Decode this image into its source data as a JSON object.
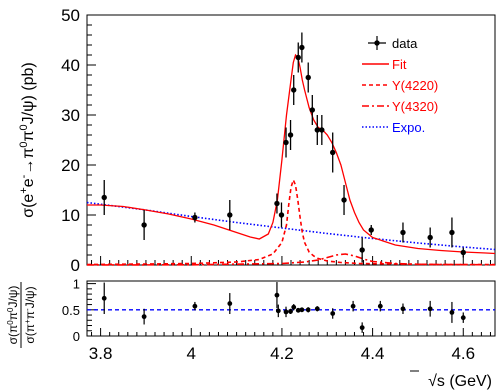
{
  "chart_data": [
    {
      "type": "scatter",
      "panel": "main",
      "xlabel": "√s (GeV)",
      "ylabel_parts": [
        "σ(e",
        "+",
        "e",
        "-",
        "→π",
        "0",
        "π",
        "0",
        "J/ψ) (pb)"
      ],
      "xlim": [
        3.77,
        4.67
      ],
      "ylim": [
        0,
        50
      ],
      "x_ticks": [
        3.8,
        4,
        4.2,
        4.4,
        4.6
      ],
      "x_tick_labels": [
        "3.8",
        "4",
        "4.2",
        "4.4",
        "4.6"
      ],
      "y_ticks": [
        0,
        10,
        20,
        30,
        40,
        50
      ],
      "y_tick_labels": [
        "0",
        "10",
        "20",
        "30",
        "40",
        "50"
      ],
      "grid": false,
      "legend_position": "top-right",
      "legend": [
        {
          "key": "data",
          "label": "data",
          "color": "#000000",
          "style": "marker"
        },
        {
          "key": "fit",
          "label": "Fit",
          "color": "#ff0000",
          "style": "solid"
        },
        {
          "key": "y4220",
          "label": "Y(4220)",
          "color": "#ff0000",
          "style": "dashed"
        },
        {
          "key": "y4320",
          "label": "Y(4320)",
          "color": "#ff0000",
          "style": "dashdot"
        },
        {
          "key": "expo",
          "label": "Expo.",
          "color": "#0000ff",
          "style": "dotted"
        }
      ],
      "data_points": [
        {
          "x": 3.808,
          "y": 13.5,
          "err": 3.5
        },
        {
          "x": 3.896,
          "y": 8.0,
          "err": 3.0
        },
        {
          "x": 4.008,
          "y": 9.5,
          "err": 1.0
        },
        {
          "x": 4.085,
          "y": 10.0,
          "err": 3.0
        },
        {
          "x": 4.189,
          "y": 12.3,
          "err": 2.0
        },
        {
          "x": 4.199,
          "y": 10.0,
          "err": 2.5
        },
        {
          "x": 4.209,
          "y": 24.5,
          "err": 3.0
        },
        {
          "x": 4.219,
          "y": 26.0,
          "err": 3.0
        },
        {
          "x": 4.226,
          "y": 35.0,
          "err": 3.0
        },
        {
          "x": 4.236,
          "y": 41.5,
          "err": 3.0
        },
        {
          "x": 4.244,
          "y": 43.5,
          "err": 3.0
        },
        {
          "x": 4.258,
          "y": 37.5,
          "err": 3.0
        },
        {
          "x": 4.267,
          "y": 31.0,
          "err": 3.0
        },
        {
          "x": 4.278,
          "y": 27.0,
          "err": 3.0
        },
        {
          "x": 4.288,
          "y": 27.0,
          "err": 3.0
        },
        {
          "x": 4.312,
          "y": 22.5,
          "err": 4.0
        },
        {
          "x": 4.337,
          "y": 13.0,
          "err": 3.0
        },
        {
          "x": 4.377,
          "y": 3.0,
          "err": 2.5
        },
        {
          "x": 4.397,
          "y": 7.0,
          "err": 1.0
        },
        {
          "x": 4.467,
          "y": 6.5,
          "err": 2.0
        },
        {
          "x": 4.527,
          "y": 5.5,
          "err": 2.0
        },
        {
          "x": 4.575,
          "y": 6.5,
          "err": 3.0
        },
        {
          "x": 4.6,
          "y": 2.5,
          "err": 1.0
        }
      ],
      "curves": {
        "fit": {
          "x": [
            3.77,
            3.8,
            3.85,
            3.9,
            3.95,
            4.0,
            4.05,
            4.1,
            4.13,
            4.15,
            4.17,
            4.18,
            4.19,
            4.2,
            4.21,
            4.22,
            4.225,
            4.23,
            4.235,
            4.24,
            4.245,
            4.25,
            4.26,
            4.27,
            4.28,
            4.29,
            4.3,
            4.31,
            4.32,
            4.33,
            4.34,
            4.35,
            4.36,
            4.37,
            4.38,
            4.4,
            4.45,
            4.5,
            4.55,
            4.6,
            4.65,
            4.67
          ],
          "y": [
            12.0,
            12.0,
            11.7,
            11.0,
            10.2,
            9.2,
            8.0,
            6.5,
            5.6,
            5.2,
            6.2,
            8.5,
            13.0,
            21.0,
            30.0,
            37.0,
            40.5,
            42.0,
            41.5,
            39.5,
            37.0,
            35.0,
            31.5,
            29.0,
            27.5,
            27.0,
            26.0,
            24.5,
            22.5,
            20.0,
            16.5,
            13.0,
            10.5,
            8.5,
            7.0,
            5.5,
            4.0,
            3.3,
            2.9,
            2.6,
            2.4,
            2.3
          ]
        },
        "y4220": {
          "x": [
            3.77,
            3.9,
            4.0,
            4.1,
            4.15,
            4.18,
            4.2,
            4.21,
            4.215,
            4.22,
            4.225,
            4.23,
            4.235,
            4.24,
            4.245,
            4.25,
            4.26,
            4.27,
            4.28,
            4.3,
            4.33,
            4.37,
            4.45,
            4.55,
            4.67
          ],
          "y": [
            0.1,
            0.2,
            0.3,
            0.6,
            1.1,
            2.2,
            4.5,
            8.0,
            12.0,
            15.5,
            17.0,
            16.0,
            13.0,
            9.5,
            6.5,
            4.5,
            2.6,
            1.8,
            1.3,
            0.8,
            0.5,
            0.3,
            0.2,
            0.1,
            0.1
          ]
        },
        "y4320": {
          "x": [
            3.77,
            4.0,
            4.2,
            4.25,
            4.28,
            4.3,
            4.32,
            4.34,
            4.36,
            4.38,
            4.4,
            4.45,
            4.5,
            4.67
          ],
          "y": [
            0.0,
            0.05,
            0.3,
            0.6,
            1.0,
            1.5,
            2.0,
            2.2,
            1.8,
            1.2,
            0.7,
            0.3,
            0.15,
            0.05
          ]
        },
        "expo": {
          "x": [
            3.77,
            3.9,
            4.0,
            4.1,
            4.2,
            4.3,
            4.4,
            4.5,
            4.6,
            4.67
          ],
          "y": [
            12.5,
            11.0,
            9.7,
            8.5,
            7.4,
            6.3,
            5.3,
            4.4,
            3.6,
            3.1
          ]
        }
      },
      "colors": {
        "data": "#000000",
        "fit": "#ff0000",
        "expo": "#0000ff"
      }
    },
    {
      "type": "scatter",
      "panel": "ratio",
      "ylabel_numerator_parts": [
        "σ(π",
        "0",
        "π",
        "0",
        "J/ψ)"
      ],
      "ylabel_denominator_parts": [
        "σ(π",
        "+",
        "π",
        "-",
        "J/ψ)"
      ],
      "xlim": [
        3.77,
        4.67
      ],
      "ylim": [
        0,
        1.05
      ],
      "x_ticks": [
        3.8,
        4,
        4.2,
        4.4,
        4.6
      ],
      "y_ticks": [
        0,
        0.5,
        1
      ],
      "y_tick_labels": [
        "0",
        "0.5",
        "1"
      ],
      "reference_line": {
        "y": 0.5,
        "color": "#0000ff",
        "style": "dashed"
      },
      "data_points": [
        {
          "x": 3.808,
          "y": 0.72,
          "err": 0.3
        },
        {
          "x": 3.896,
          "y": 0.37,
          "err": 0.15
        },
        {
          "x": 4.008,
          "y": 0.57,
          "err": 0.08
        },
        {
          "x": 4.085,
          "y": 0.62,
          "err": 0.2
        },
        {
          "x": 4.189,
          "y": 0.78,
          "err": 0.25
        },
        {
          "x": 4.192,
          "y": 0.48,
          "err": 0.12
        },
        {
          "x": 4.209,
          "y": 0.46,
          "err": 0.1
        },
        {
          "x": 4.219,
          "y": 0.47,
          "err": 0.05
        },
        {
          "x": 4.226,
          "y": 0.55,
          "err": 0.06
        },
        {
          "x": 4.236,
          "y": 0.49,
          "err": 0.04
        },
        {
          "x": 4.244,
          "y": 0.5,
          "err": 0.04
        },
        {
          "x": 4.258,
          "y": 0.5,
          "err": 0.05
        },
        {
          "x": 4.278,
          "y": 0.52,
          "err": 0.05
        },
        {
          "x": 4.312,
          "y": 0.43,
          "err": 0.1
        },
        {
          "x": 4.357,
          "y": 0.57,
          "err": 0.1
        },
        {
          "x": 4.377,
          "y": 0.16,
          "err": 0.1
        },
        {
          "x": 4.417,
          "y": 0.57,
          "err": 0.1
        },
        {
          "x": 4.467,
          "y": 0.52,
          "err": 0.1
        },
        {
          "x": 4.527,
          "y": 0.52,
          "err": 0.15
        },
        {
          "x": 4.575,
          "y": 0.45,
          "err": 0.2
        },
        {
          "x": 4.6,
          "y": 0.35,
          "err": 0.1
        }
      ]
    }
  ]
}
